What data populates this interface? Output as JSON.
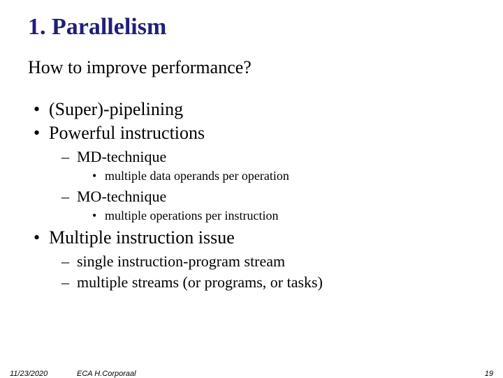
{
  "title": {
    "text": "1. Parallelism",
    "color": "#1f1f7a",
    "fontsize": 34
  },
  "subtitle": {
    "text": "How to improve performance?",
    "fontsize": 26
  },
  "bullets": {
    "item1": "(Super)-pipelining",
    "item2": "Powerful instructions",
    "item2_sub1": "MD-technique",
    "item2_sub1_detail": "multiple data operands per operation",
    "item2_sub2": "MO-technique",
    "item2_sub2_detail": "multiple operations per instruction",
    "item3": "Multiple instruction issue",
    "item3_sub1": "single instruction-program stream",
    "item3_sub2": "multiple streams (or programs, or tasks)"
  },
  "footer": {
    "date": "11/23/2020",
    "source": "ECA  H.Corporaal",
    "page": "19"
  },
  "colors": {
    "background": "#ffffff",
    "text": "#000000",
    "title": "#1f1f7a"
  }
}
